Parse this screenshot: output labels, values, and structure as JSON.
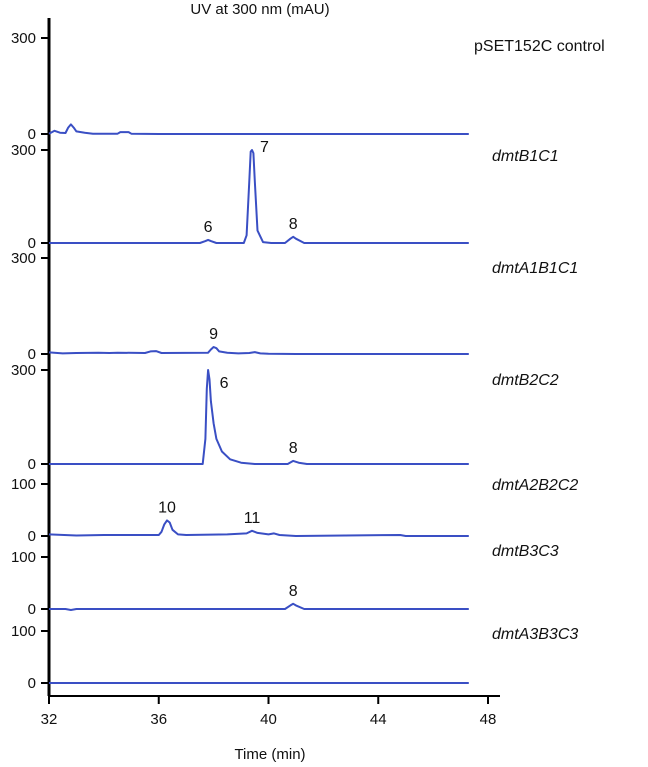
{
  "chart_data": {
    "type": "line",
    "title": "UV at 300 nm (mAU)",
    "xlabel": "Time (min)",
    "xlim": [
      32,
      48
    ],
    "x_ticks": [
      32,
      36,
      40,
      44,
      48
    ],
    "line_color": "#3a4fc4",
    "series": [
      {
        "name": "pSET152C control",
        "italic": false,
        "ylim": [
          0,
          300
        ],
        "y_ticks": [
          0,
          300
        ],
        "points": [
          [
            32.0,
            1
          ],
          [
            32.2,
            10
          ],
          [
            32.4,
            4
          ],
          [
            32.6,
            3
          ],
          [
            32.7,
            20
          ],
          [
            32.8,
            30
          ],
          [
            32.9,
            20
          ],
          [
            33.0,
            8
          ],
          [
            33.3,
            4
          ],
          [
            33.6,
            1
          ],
          [
            34.5,
            1
          ],
          [
            34.6,
            6
          ],
          [
            34.9,
            6
          ],
          [
            35.0,
            1
          ],
          [
            36.0,
            0
          ],
          [
            40.0,
            0
          ],
          [
            44.0,
            0
          ],
          [
            47.3,
            0
          ]
        ],
        "peaks": []
      },
      {
        "name": "dmtB1C1",
        "italic": true,
        "ylim": [
          0,
          300
        ],
        "y_ticks": [
          0,
          300
        ],
        "points": [
          [
            32.0,
            0
          ],
          [
            37.5,
            0
          ],
          [
            37.7,
            6
          ],
          [
            37.8,
            10
          ],
          [
            37.9,
            6
          ],
          [
            38.1,
            0
          ],
          [
            39.1,
            0
          ],
          [
            39.2,
            25
          ],
          [
            39.3,
            200
          ],
          [
            39.35,
            295
          ],
          [
            39.4,
            300
          ],
          [
            39.45,
            290
          ],
          [
            39.5,
            200
          ],
          [
            39.6,
            40
          ],
          [
            39.8,
            3
          ],
          [
            40.1,
            0
          ],
          [
            40.6,
            0
          ],
          [
            40.8,
            14
          ],
          [
            40.9,
            20
          ],
          [
            41.0,
            14
          ],
          [
            41.3,
            0
          ],
          [
            44.0,
            0
          ],
          [
            47.3,
            0
          ]
        ],
        "peaks": [
          {
            "label": "6",
            "x": 37.8,
            "y": 10
          },
          {
            "label": "7",
            "x": 39.45,
            "y": 300
          },
          {
            "label": "8",
            "x": 40.9,
            "y": 20
          }
        ]
      },
      {
        "name": "dmtA1B1C1",
        "italic": true,
        "ylim": [
          0,
          300
        ],
        "y_ticks": [
          0,
          300
        ],
        "points": [
          [
            32.0,
            5
          ],
          [
            32.5,
            2
          ],
          [
            33.0,
            3
          ],
          [
            33.8,
            4
          ],
          [
            34.2,
            3
          ],
          [
            34.5,
            4
          ],
          [
            35.5,
            3
          ],
          [
            35.7,
            8
          ],
          [
            35.9,
            9
          ],
          [
            36.1,
            3
          ],
          [
            37.8,
            4
          ],
          [
            37.9,
            14
          ],
          [
            38.0,
            22
          ],
          [
            38.1,
            18
          ],
          [
            38.2,
            8
          ],
          [
            38.5,
            4
          ],
          [
            38.9,
            2
          ],
          [
            39.3,
            3
          ],
          [
            39.5,
            6
          ],
          [
            39.7,
            2
          ],
          [
            40.0,
            1
          ],
          [
            41.0,
            0
          ],
          [
            44.0,
            0
          ],
          [
            47.3,
            0
          ]
        ],
        "peaks": [
          {
            "label": "9",
            "x": 38.0,
            "y": 22
          }
        ]
      },
      {
        "name": "dmtB2C2",
        "italic": true,
        "ylim": [
          0,
          300
        ],
        "y_ticks": [
          0,
          300
        ],
        "points": [
          [
            32.0,
            0
          ],
          [
            37.6,
            0
          ],
          [
            37.7,
            80
          ],
          [
            37.75,
            240
          ],
          [
            37.8,
            300
          ],
          [
            37.85,
            270
          ],
          [
            37.9,
            200
          ],
          [
            38.0,
            130
          ],
          [
            38.1,
            80
          ],
          [
            38.3,
            40
          ],
          [
            38.6,
            15
          ],
          [
            39.0,
            4
          ],
          [
            39.5,
            0
          ],
          [
            40.7,
            0
          ],
          [
            40.9,
            10
          ],
          [
            41.1,
            4
          ],
          [
            41.4,
            0
          ],
          [
            47.3,
            0
          ]
        ],
        "peaks": [
          {
            "label": "6",
            "x": 37.8,
            "y": 300
          },
          {
            "label": "8",
            "x": 40.9,
            "y": 10
          }
        ]
      },
      {
        "name": "dmtA2B2C2",
        "italic": true,
        "ylim": [
          0,
          100
        ],
        "y_ticks": [
          0,
          100
        ],
        "points": [
          [
            32.0,
            3
          ],
          [
            33.0,
            1
          ],
          [
            34.0,
            2
          ],
          [
            35.0,
            2
          ],
          [
            36.0,
            2
          ],
          [
            36.1,
            8
          ],
          [
            36.2,
            22
          ],
          [
            36.3,
            30
          ],
          [
            36.4,
            26
          ],
          [
            36.5,
            12
          ],
          [
            36.7,
            3
          ],
          [
            37.0,
            2
          ],
          [
            38.5,
            3
          ],
          [
            39.2,
            5
          ],
          [
            39.4,
            10
          ],
          [
            39.6,
            6
          ],
          [
            40.0,
            3
          ],
          [
            40.2,
            5
          ],
          [
            40.4,
            2
          ],
          [
            41.0,
            0
          ],
          [
            44.8,
            2
          ],
          [
            45.0,
            0
          ],
          [
            47.3,
            0
          ]
        ],
        "peaks": [
          {
            "label": "10",
            "x": 36.3,
            "y": 30
          },
          {
            "label": "11",
            "x": 39.4,
            "y": 10
          }
        ]
      },
      {
        "name": "dmtB3C3",
        "italic": true,
        "ylim": [
          0,
          100
        ],
        "y_ticks": [
          0,
          100
        ],
        "points": [
          [
            32.0,
            0
          ],
          [
            32.6,
            0
          ],
          [
            32.8,
            -2
          ],
          [
            33.0,
            0
          ],
          [
            40.6,
            0
          ],
          [
            40.8,
            7
          ],
          [
            40.9,
            10
          ],
          [
            41.0,
            7
          ],
          [
            41.3,
            0
          ],
          [
            47.3,
            0
          ]
        ],
        "peaks": [
          {
            "label": "8",
            "x": 40.9,
            "y": 10
          }
        ]
      },
      {
        "name": "dmtA3B3C3",
        "italic": true,
        "ylim": [
          0,
          100
        ],
        "y_ticks": [
          0,
          100
        ],
        "points": [
          [
            32.0,
            0
          ],
          [
            47.3,
            0
          ]
        ],
        "peaks": []
      }
    ]
  }
}
